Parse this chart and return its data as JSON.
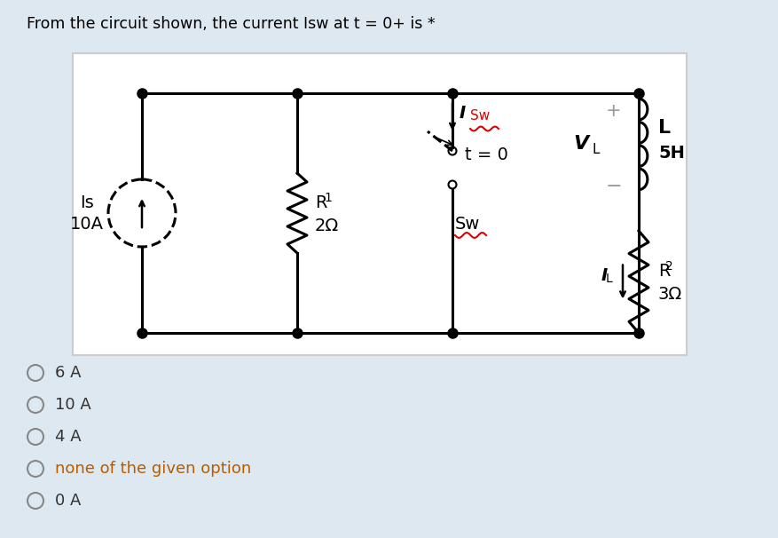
{
  "bg_color": "#dde8f0",
  "circuit_bg": "#ffffff",
  "title": "From the circuit shown, the current Isw at t = 0+ is *",
  "title_fontsize": 12.5,
  "options": [
    "6 A",
    "10 A",
    "4 A",
    "none of the given option",
    "0 A"
  ],
  "option_color": "#333333",
  "option_special_color": "#b85c00",
  "option_fontsize": 13,
  "line_color": "#000000",
  "red_color": "#dd0000",
  "gray_color": "#999999",
  "label_Is": "Is",
  "label_Is_val": "10A",
  "label_R1": "R",
  "label_R1_sub": "1",
  "label_R1_val": "2Ω",
  "label_R2": "R",
  "label_R2_sub": "2",
  "label_R2_val": "3Ω",
  "label_L": "L",
  "label_L_val": "5H",
  "label_VL": "V",
  "label_VL_sub": "L",
  "label_IL": "I",
  "label_IL_sub": "L",
  "label_ISw_main": "I",
  "label_ISw_sub": "Sw",
  "label_t0": "t = 0",
  "label_Sw": "Sw"
}
